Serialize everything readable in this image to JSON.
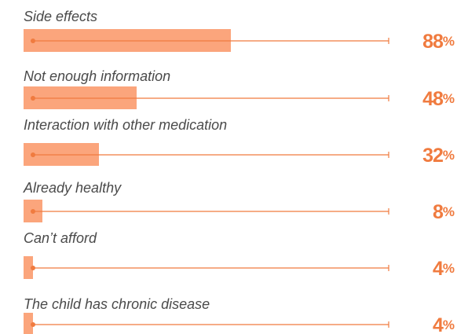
{
  "chart_data": {
    "type": "bar",
    "categories": [
      "Side effects",
      "Not enough information",
      "Interaction with other medication",
      "Already healthy",
      "Can’t afford",
      "The child has chronic disease"
    ],
    "values": [
      88,
      48,
      32,
      8,
      4,
      4
    ],
    "value_labels": [
      "88%",
      "48%",
      "32%",
      "8%",
      "4%",
      "4%"
    ],
    "color": "#fba57c"
  }
}
